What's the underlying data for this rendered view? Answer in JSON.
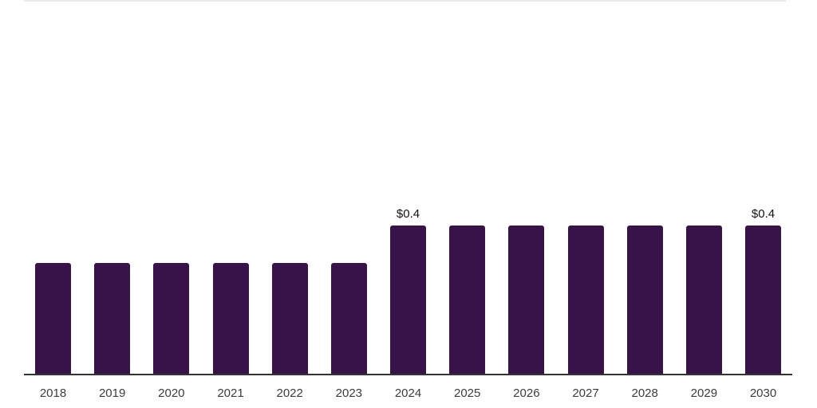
{
  "chart_data": {
    "type": "bar",
    "categories": [
      "2018",
      "2019",
      "2020",
      "2021",
      "2022",
      "2023",
      "2024",
      "2025",
      "2026",
      "2027",
      "2028",
      "2029",
      "2030"
    ],
    "values": [
      0.3,
      0.3,
      0.3,
      0.3,
      0.3,
      0.3,
      0.4,
      0.4,
      0.4,
      0.4,
      0.4,
      0.4,
      0.4
    ],
    "data_labels": {
      "2024": "$0.4",
      "2030": "$0.4"
    },
    "title": "",
    "xlabel": "",
    "ylabel": "",
    "ylim": [
      0,
      1.0
    ],
    "grid": false,
    "legend": null,
    "colors": {
      "bar": "#371349",
      "axis_line": "#333333",
      "data_label_text": "#111111",
      "tick_label_text": "#3c3c3c",
      "top_rule": "#e9e9e9",
      "background": "#ffffff"
    }
  }
}
